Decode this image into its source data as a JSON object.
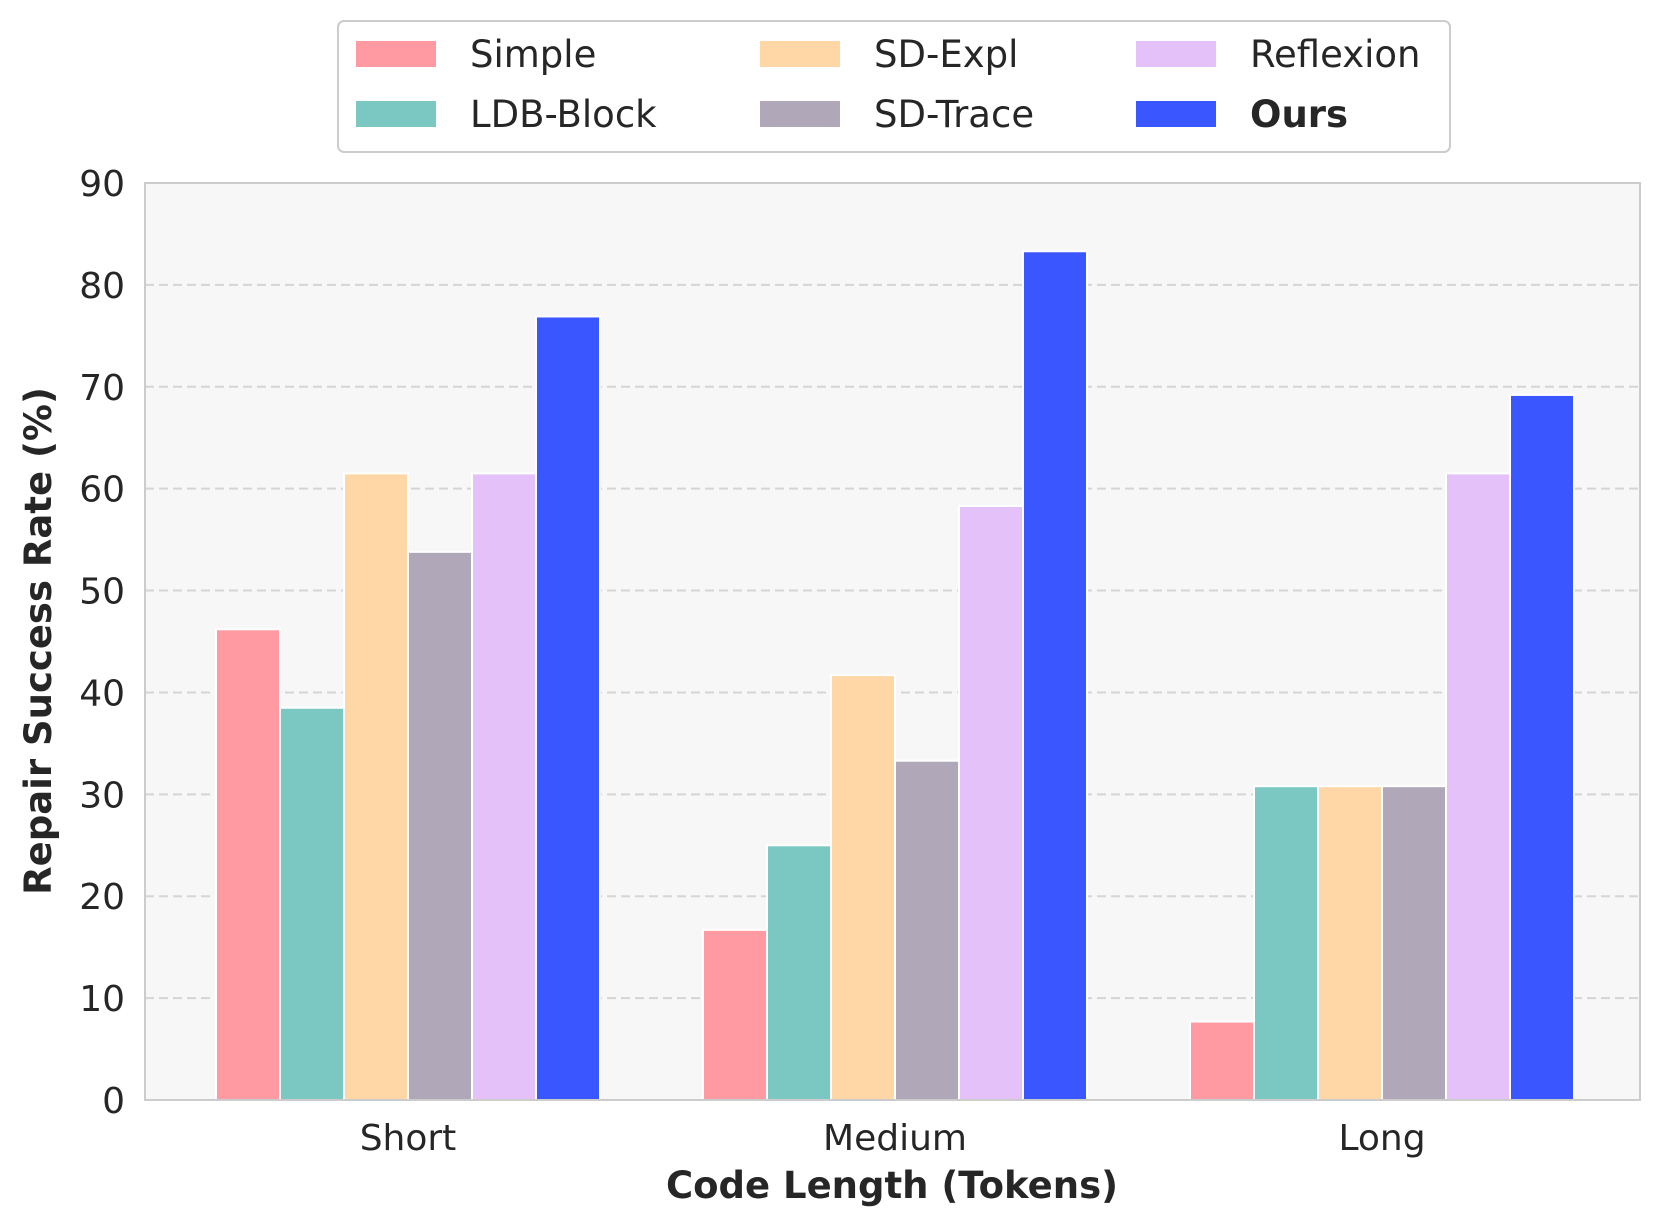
{
  "chart_data": {
    "type": "bar",
    "title": "",
    "xlabel": "Code Length (Tokens)",
    "ylabel": "Repair Success Rate (%)",
    "ylim": [
      0,
      90
    ],
    "yticks": [
      0,
      10,
      20,
      30,
      40,
      50,
      60,
      70,
      80,
      90
    ],
    "grid": "y-dashed",
    "legend_position": "top-center",
    "categories": [
      "Short",
      "Medium",
      "Long"
    ],
    "series": [
      {
        "name": "Simple",
        "color": "#FF9AA2",
        "bold": false,
        "values": [
          46.2,
          16.7,
          7.7
        ]
      },
      {
        "name": "LDB-Block",
        "color": "#7BC8C3",
        "bold": false,
        "values": [
          38.5,
          25.0,
          30.8
        ]
      },
      {
        "name": "SD-Expl",
        "color": "#FFD6A5",
        "bold": false,
        "values": [
          61.5,
          41.7,
          30.8
        ]
      },
      {
        "name": "SD-Trace",
        "color": "#B0A8B9",
        "bold": false,
        "values": [
          53.8,
          33.3,
          30.8
        ]
      },
      {
        "name": "Reflexion",
        "color": "#E4C1F9",
        "bold": false,
        "values": [
          61.5,
          58.3,
          61.5
        ]
      },
      {
        "name": "Ours",
        "color": "#3A57FF",
        "bold": true,
        "values": [
          76.9,
          83.3,
          69.2
        ]
      }
    ]
  }
}
